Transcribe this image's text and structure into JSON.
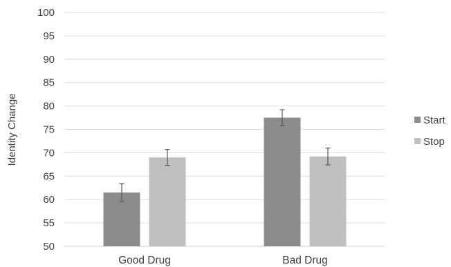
{
  "chart_data": {
    "type": "bar",
    "title": "",
    "xlabel": "",
    "ylabel": "Identity Change",
    "ylim": [
      50,
      100
    ],
    "yticks": [
      50,
      55,
      60,
      65,
      70,
      75,
      80,
      85,
      90,
      95,
      100
    ],
    "grid": true,
    "legend_position": "right",
    "categories": [
      "Good Drug",
      "Bad Drug"
    ],
    "series": [
      {
        "name": "Start",
        "color": "#8c8c8c",
        "values": [
          61.5,
          77.5
        ],
        "errors": [
          1.9,
          1.7
        ]
      },
      {
        "name": "Stop",
        "color": "#bfbfbf",
        "values": [
          69.0,
          69.2
        ],
        "errors": [
          1.7,
          1.8
        ]
      }
    ]
  }
}
